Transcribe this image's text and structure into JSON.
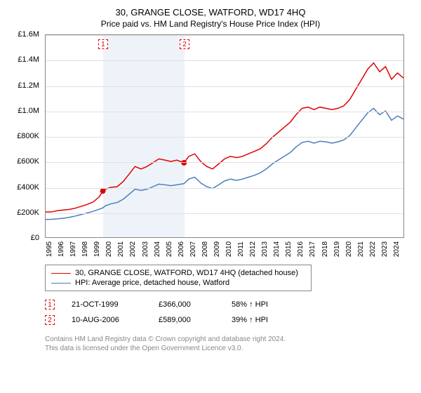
{
  "title": "30, GRANGE CLOSE, WATFORD, WD17 4HQ",
  "subtitle": "Price paid vs. HM Land Registry's House Price Index (HPI)",
  "chart": {
    "type": "line",
    "xlim": [
      1995,
      2025
    ],
    "ylim": [
      0,
      1600000
    ],
    "ytick_step": 200000,
    "ylabels": [
      "£0",
      "£200K",
      "£400K",
      "£600K",
      "£800K",
      "£1.0M",
      "£1.2M",
      "£1.4M",
      "£1.6M"
    ],
    "xlabels": [
      "1995",
      "1996",
      "1997",
      "1998",
      "1999",
      "2000",
      "2001",
      "2002",
      "2003",
      "2004",
      "2005",
      "2006",
      "2007",
      "2008",
      "2009",
      "2010",
      "2011",
      "2012",
      "2013",
      "2014",
      "2015",
      "2016",
      "2017",
      "2018",
      "2019",
      "2020",
      "2021",
      "2022",
      "2023",
      "2024"
    ],
    "grid_color": "#e0e0e0",
    "border_color": "#888888",
    "background_color": "#ffffff",
    "shaded_band": {
      "start": 1999.8,
      "end": 2006.6,
      "color": "#eef3f9"
    },
    "series": [
      {
        "name": "price_paid",
        "label": "30, GRANGE CLOSE, WATFORD, WD17 4HQ (detached house)",
        "color": "#e00000",
        "line_width": 1.5,
        "data": [
          [
            1995,
            200000
          ],
          [
            1995.5,
            200000
          ],
          [
            1996,
            210000
          ],
          [
            1996.5,
            215000
          ],
          [
            1997,
            220000
          ],
          [
            1997.5,
            230000
          ],
          [
            1998,
            245000
          ],
          [
            1998.5,
            260000
          ],
          [
            1999,
            280000
          ],
          [
            1999.5,
            320000
          ],
          [
            1999.8,
            366000
          ],
          [
            2000,
            380000
          ],
          [
            2000.5,
            395000
          ],
          [
            2001,
            400000
          ],
          [
            2001.5,
            440000
          ],
          [
            2002,
            500000
          ],
          [
            2002.5,
            560000
          ],
          [
            2003,
            540000
          ],
          [
            2003.5,
            560000
          ],
          [
            2004,
            590000
          ],
          [
            2004.5,
            620000
          ],
          [
            2005,
            610000
          ],
          [
            2005.5,
            600000
          ],
          [
            2006,
            610000
          ],
          [
            2006.6,
            589000
          ],
          [
            2007,
            640000
          ],
          [
            2007.5,
            660000
          ],
          [
            2008,
            600000
          ],
          [
            2008.5,
            560000
          ],
          [
            2009,
            540000
          ],
          [
            2009.5,
            580000
          ],
          [
            2010,
            620000
          ],
          [
            2010.5,
            640000
          ],
          [
            2011,
            630000
          ],
          [
            2011.5,
            640000
          ],
          [
            2012,
            660000
          ],
          [
            2012.5,
            680000
          ],
          [
            2013,
            700000
          ],
          [
            2013.5,
            740000
          ],
          [
            2014,
            790000
          ],
          [
            2014.5,
            830000
          ],
          [
            2015,
            870000
          ],
          [
            2015.5,
            910000
          ],
          [
            2016,
            970000
          ],
          [
            2016.5,
            1020000
          ],
          [
            2017,
            1030000
          ],
          [
            2017.5,
            1010000
          ],
          [
            2018,
            1030000
          ],
          [
            2018.5,
            1020000
          ],
          [
            2019,
            1010000
          ],
          [
            2019.5,
            1020000
          ],
          [
            2020,
            1040000
          ],
          [
            2020.5,
            1090000
          ],
          [
            2021,
            1170000
          ],
          [
            2021.5,
            1250000
          ],
          [
            2022,
            1330000
          ],
          [
            2022.5,
            1380000
          ],
          [
            2023,
            1310000
          ],
          [
            2023.5,
            1350000
          ],
          [
            2024,
            1250000
          ],
          [
            2024.5,
            1300000
          ],
          [
            2025,
            1260000
          ]
        ]
      },
      {
        "name": "hpi",
        "label": "HPI: Average price, detached house, Watford",
        "color": "#4a7ebb",
        "line_width": 1.5,
        "data": [
          [
            1995,
            140000
          ],
          [
            1995.5,
            142000
          ],
          [
            1996,
            145000
          ],
          [
            1996.5,
            150000
          ],
          [
            1997,
            158000
          ],
          [
            1997.5,
            168000
          ],
          [
            1998,
            180000
          ],
          [
            1998.5,
            192000
          ],
          [
            1999,
            205000
          ],
          [
            1999.5,
            222000
          ],
          [
            1999.8,
            232000
          ],
          [
            2000,
            248000
          ],
          [
            2000.5,
            265000
          ],
          [
            2001,
            275000
          ],
          [
            2001.5,
            300000
          ],
          [
            2002,
            340000
          ],
          [
            2002.5,
            380000
          ],
          [
            2003,
            370000
          ],
          [
            2003.5,
            380000
          ],
          [
            2004,
            400000
          ],
          [
            2004.5,
            420000
          ],
          [
            2005,
            415000
          ],
          [
            2005.5,
            408000
          ],
          [
            2006,
            415000
          ],
          [
            2006.6,
            424000
          ],
          [
            2007,
            460000
          ],
          [
            2007.5,
            475000
          ],
          [
            2008,
            430000
          ],
          [
            2008.5,
            400000
          ],
          [
            2009,
            385000
          ],
          [
            2009.5,
            415000
          ],
          [
            2010,
            445000
          ],
          [
            2010.5,
            460000
          ],
          [
            2011,
            450000
          ],
          [
            2011.5,
            460000
          ],
          [
            2012,
            475000
          ],
          [
            2012.5,
            490000
          ],
          [
            2013,
            510000
          ],
          [
            2013.5,
            540000
          ],
          [
            2014,
            580000
          ],
          [
            2014.5,
            610000
          ],
          [
            2015,
            640000
          ],
          [
            2015.5,
            670000
          ],
          [
            2016,
            715000
          ],
          [
            2016.5,
            750000
          ],
          [
            2017,
            760000
          ],
          [
            2017.5,
            745000
          ],
          [
            2018,
            760000
          ],
          [
            2018.5,
            755000
          ],
          [
            2019,
            745000
          ],
          [
            2019.5,
            755000
          ],
          [
            2020,
            770000
          ],
          [
            2020.5,
            805000
          ],
          [
            2021,
            865000
          ],
          [
            2021.5,
            925000
          ],
          [
            2022,
            985000
          ],
          [
            2022.5,
            1020000
          ],
          [
            2023,
            970000
          ],
          [
            2023.5,
            1000000
          ],
          [
            2024,
            925000
          ],
          [
            2024.5,
            960000
          ],
          [
            2025,
            935000
          ]
        ]
      }
    ],
    "markers": [
      {
        "n": "1",
        "x": 1999.8,
        "y": 366000
      },
      {
        "n": "2",
        "x": 2006.6,
        "y": 589000
      }
    ]
  },
  "legend": {
    "items": [
      {
        "color": "#e00000",
        "text": "30, GRANGE CLOSE, WATFORD, WD17 4HQ (detached house)"
      },
      {
        "color": "#4a7ebb",
        "text": "HPI: Average price, detached house, Watford"
      }
    ]
  },
  "data_rows": [
    {
      "n": "1",
      "date": "21-OCT-1999",
      "price": "£366,000",
      "delta": "58% ↑ HPI"
    },
    {
      "n": "2",
      "date": "10-AUG-2006",
      "price": "£589,000",
      "delta": "39% ↑ HPI"
    }
  ],
  "footnote_line1": "Contains HM Land Registry data © Crown copyright and database right 2024.",
  "footnote_line2": "This data is licensed under the Open Government Licence v3.0."
}
